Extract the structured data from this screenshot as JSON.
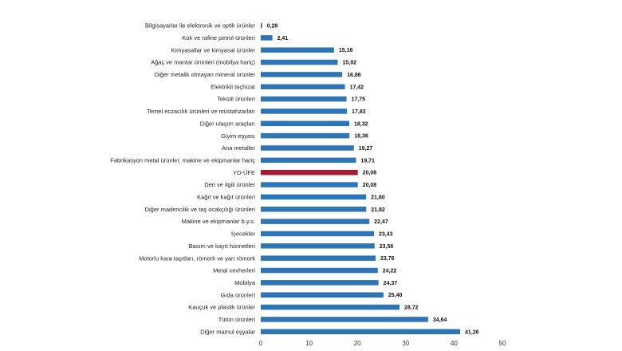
{
  "chart_data": {
    "type": "bar",
    "orientation": "horizontal",
    "title": "",
    "xlabel": "",
    "ylabel": "",
    "xlim": [
      0,
      50
    ],
    "x_ticks": [
      0,
      10,
      20,
      30,
      40,
      50
    ],
    "grid": false,
    "colors": {
      "default": "#2E75B6",
      "highlight": "#A6192E"
    },
    "highlight_category": "YD-ÜFE",
    "categories": [
      "Bilgisayarlar ile elektronik ve optik ürünler",
      "Kok ve rafine petrol ürünleri",
      "Kimyasallar ve kimyasal ürünler",
      "Ağaç ve mantar ürünleri (mobilya hariç)",
      "Diğer metalik olmayan mineral ürünler",
      "Elektrikli teçhizat",
      "Tekstil ürünleri",
      "Temel eczacılık ürünleri ve müstahzarları",
      "Diğer ulaşım araçları",
      "Giyim eşyası",
      "Ana metaller",
      "Fabrikasyon metal ürünler, makine ve ekipmanlar hariç",
      "YD-ÜFE",
      "Deri ve ilgili ürünler",
      "Kağıt ve kağıt ürünleri",
      "Diğer madencilik ve taş ocakçılığı ürünleri",
      "Makine ve ekipmanlar b.y.s.",
      "İçecekler",
      "Basım ve kayıt hizmetleri",
      "Motorlu kara taşıtları, römork ve yarı römork",
      "Metal cevherleri",
      "Mobilya",
      "Gıda ürünleri",
      "Kauçuk ve plastik ürünler",
      "Tütün ürünleri",
      "Diğer mamul eşyalar"
    ],
    "values": [
      0.28,
      2.41,
      15.16,
      15.92,
      16.86,
      17.42,
      17.75,
      17.83,
      18.32,
      18.36,
      19.27,
      19.71,
      20.08,
      20.08,
      21.8,
      21.82,
      22.47,
      23.43,
      23.56,
      23.76,
      24.22,
      24.37,
      25.4,
      28.72,
      34.64,
      41.26
    ],
    "value_labels": [
      "0,28",
      "2,41",
      "15,16",
      "15,92",
      "16,86",
      "17,42",
      "17,75",
      "17,83",
      "18,32",
      "18,36",
      "19,27",
      "19,71",
      "20,08",
      "20,08",
      "21,80",
      "21,82",
      "22,47",
      "23,43",
      "23,56",
      "23,76",
      "24,22",
      "24,37",
      "25,40",
      "28,72",
      "34,64",
      "41,26"
    ]
  }
}
